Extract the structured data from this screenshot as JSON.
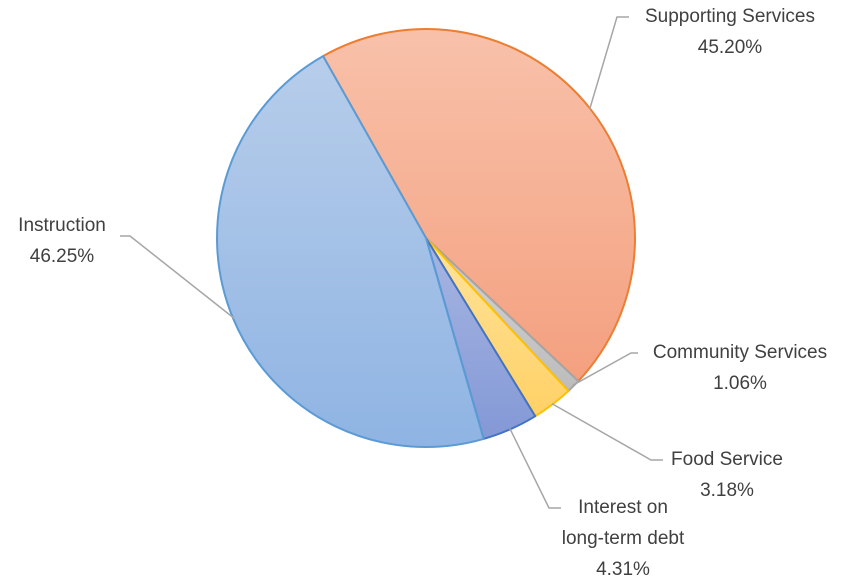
{
  "chart_data": {
    "type": "pie",
    "title": "",
    "slices": [
      {
        "label": "Supporting Services",
        "value": 45.2,
        "display": "45.20%",
        "color": "#f4a889",
        "edge": "#ed7d31"
      },
      {
        "label": "Community Services",
        "value": 1.06,
        "display": "1.06%",
        "color": "#c9c9c9",
        "edge": "#a5a5a5"
      },
      {
        "label": "Food Service",
        "value": 3.18,
        "display": "3.18%",
        "color": "#ffd77a",
        "edge": "#ffc000"
      },
      {
        "label": "Interest on long-term debt",
        "label_lines": [
          "Interest on",
          "long-term debt"
        ],
        "value": 4.31,
        "display": "4.31%",
        "color": "#94a8dc",
        "edge": "#4472c4"
      },
      {
        "label": "Instruction",
        "value": 46.25,
        "display": "46.25%",
        "color": "#a3c0e6",
        "edge": "#5b9bd5"
      }
    ]
  }
}
